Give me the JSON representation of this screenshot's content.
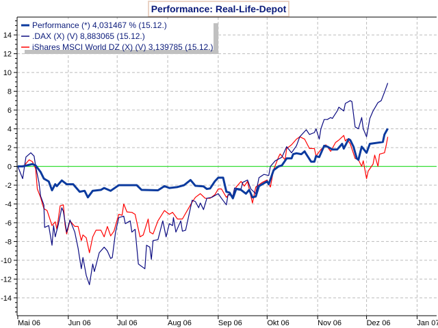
{
  "chart_data": {
    "type": "line",
    "title": "Performance: Real-Life-Depot",
    "xlabel": "",
    "ylabel": "",
    "x_unit": "days since 01.05.2006",
    "xlim": [
      -0.4,
      257
    ],
    "ylim": [
      -15.9,
      15.9
    ],
    "grid": true,
    "legend_placement": "top-left",
    "x_ticks": [
      {
        "label": "Mai 06",
        "day": 0
      },
      {
        "label": "Jun 06",
        "day": 31
      },
      {
        "label": "Jul 06",
        "day": 61
      },
      {
        "label": "Aug 06",
        "day": 92
      },
      {
        "label": "Sep 06",
        "day": 123
      },
      {
        "label": "Okt 06",
        "day": 153
      },
      {
        "label": "Nov 06",
        "day": 184
      },
      {
        "label": "Dez 06",
        "day": 214
      },
      {
        "label": "Jan 07",
        "day": 245
      }
    ],
    "y_ticks": [
      "-14",
      "-12",
      "-10",
      "-8",
      "-6",
      "-4",
      "-2",
      "0",
      "2",
      "4",
      "6",
      "8",
      "10",
      "12",
      "14"
    ],
    "colors": {
      "performance": "#0b3a9e",
      "dax": "#0a0a80",
      "ishares": "#ff0000",
      "zero_line": "#33dd33",
      "grid": "#bbbbbb",
      "title_border": "#ead3c5"
    },
    "series": [
      {
        "name": "Performance (*) 4,031467 % (15.12.)",
        "color": "#0b3a9e",
        "width": 3,
        "points": [
          [
            0,
            0
          ],
          [
            3,
            0
          ],
          [
            9,
            0.25
          ],
          [
            11,
            0.1
          ],
          [
            14,
            -0.6
          ],
          [
            16,
            -1.3
          ],
          [
            19,
            -1.6
          ],
          [
            21,
            -2.55
          ],
          [
            23,
            -1.9
          ],
          [
            24,
            -2.1
          ],
          [
            27,
            -1.5
          ],
          [
            30,
            -1.9
          ],
          [
            34,
            -1.9
          ],
          [
            38,
            -2.7
          ],
          [
            41,
            -2.6
          ],
          [
            43,
            -3.3
          ],
          [
            46,
            -2.6
          ],
          [
            51,
            -2.5
          ],
          [
            53,
            -2.3
          ],
          [
            57,
            -2.6
          ],
          [
            62,
            -2.0
          ],
          [
            65,
            -2.0
          ],
          [
            67,
            -2.0
          ],
          [
            73,
            -2.0
          ],
          [
            76,
            -2.5
          ],
          [
            86,
            -2.55
          ],
          [
            90,
            -2.1
          ],
          [
            93,
            -2.3
          ],
          [
            98,
            -2.2
          ],
          [
            102,
            -2.0
          ],
          [
            106,
            -1.45
          ],
          [
            109,
            -2.07
          ],
          [
            114,
            -2.13
          ],
          [
            116,
            -2.4
          ],
          [
            118,
            -2.35
          ],
          [
            121,
            -1.57
          ],
          [
            123,
            -1.2
          ],
          [
            126,
            -1.2
          ],
          [
            128,
            -2.7
          ],
          [
            130,
            -2.8
          ],
          [
            132,
            -3.4
          ],
          [
            134,
            -2.4
          ],
          [
            137,
            -2.5
          ],
          [
            140,
            -2.9
          ],
          [
            142,
            -2.5
          ],
          [
            144,
            -3.3
          ],
          [
            146,
            -3.2
          ],
          [
            148,
            -2.1
          ],
          [
            153,
            -1.6
          ],
          [
            154,
            -1.9
          ],
          [
            157,
            -0.4
          ],
          [
            160,
            0
          ],
          [
            162,
            0.1
          ],
          [
            165,
            0.85
          ],
          [
            168,
            0.85
          ],
          [
            169,
            1.3
          ],
          [
            171,
            1.4
          ],
          [
            174,
            1.3
          ],
          [
            176,
            1.6
          ],
          [
            177,
            1.3
          ],
          [
            180,
            0.5
          ],
          [
            182,
            0.5
          ],
          [
            183,
            1.1
          ],
          [
            185,
            1.0
          ],
          [
            188,
            2.2
          ],
          [
            190,
            2.1
          ],
          [
            193,
            1.8
          ],
          [
            196,
            1.8
          ],
          [
            199,
            2.4
          ],
          [
            200,
            1.9
          ],
          [
            203,
            2.9
          ],
          [
            204,
            2.8
          ],
          [
            206,
            2.1
          ],
          [
            208,
            0.85
          ],
          [
            209,
            0.7
          ],
          [
            211,
            2.1
          ],
          [
            214,
            1.45
          ],
          [
            216,
            2.4
          ],
          [
            224,
            2.6
          ],
          [
            225,
            3.4
          ],
          [
            227,
            4.03
          ]
        ]
      },
      {
        "name": ".DAX (X) (V) 8,883065 (15.12.)",
        "color": "#0a0a80",
        "width": 1.2,
        "points": [
          [
            0,
            0
          ],
          [
            3,
            -1.3
          ],
          [
            5,
            1.0
          ],
          [
            8,
            1.45
          ],
          [
            10,
            1.1
          ],
          [
            11,
            0
          ],
          [
            13,
            -1.7
          ],
          [
            14,
            -3.15
          ],
          [
            16,
            -4.1
          ],
          [
            16.5,
            -6.5
          ],
          [
            19,
            -6.3
          ],
          [
            21,
            -8.4
          ],
          [
            22,
            -6.3
          ],
          [
            23,
            -7.5
          ],
          [
            25,
            -6.1
          ],
          [
            27,
            -4.4
          ],
          [
            28,
            -4.8
          ],
          [
            30,
            -7.0
          ],
          [
            32,
            -5.7
          ],
          [
            35,
            -7.0
          ],
          [
            37,
            -8.7
          ],
          [
            39,
            -10.9
          ],
          [
            40,
            -9.7
          ],
          [
            42,
            -11.6
          ],
          [
            44,
            -12.6
          ],
          [
            46,
            -10.4
          ],
          [
            47,
            -11.2
          ],
          [
            50,
            -9.2
          ],
          [
            53,
            -8.6
          ],
          [
            55,
            -9.0
          ],
          [
            57,
            -9.8
          ],
          [
            58,
            -9.7
          ],
          [
            60,
            -7.0
          ],
          [
            62,
            -5.45
          ],
          [
            65,
            -5.3
          ],
          [
            66,
            -6.1
          ],
          [
            69,
            -5.8
          ],
          [
            70,
            -7.0
          ],
          [
            72,
            -6.7
          ],
          [
            74,
            -10.4
          ],
          [
            78,
            -10.9
          ],
          [
            79,
            -8.4
          ],
          [
            81,
            -8.6
          ],
          [
            82,
            -9.9
          ],
          [
            83,
            -7.9
          ],
          [
            86,
            -7.8
          ],
          [
            89,
            -5.8
          ],
          [
            91,
            -7.5
          ],
          [
            93,
            -6.1
          ],
          [
            95,
            -6.3
          ],
          [
            95.5,
            -5.45
          ],
          [
            97,
            -7.0
          ],
          [
            100,
            -5.8
          ],
          [
            101,
            -6.9
          ],
          [
            103,
            -6.8
          ],
          [
            107,
            -3.6
          ],
          [
            109,
            -3.75
          ],
          [
            111,
            -4.4
          ],
          [
            112,
            -3.9
          ],
          [
            114,
            -4.6
          ],
          [
            116,
            -3.4
          ],
          [
            119,
            -3.3
          ],
          [
            123,
            -2.9
          ],
          [
            125,
            -3.4
          ],
          [
            128,
            -4.1
          ],
          [
            129,
            -3.0
          ],
          [
            132,
            -3.15
          ],
          [
            133,
            -2.3
          ],
          [
            137,
            -2.4
          ],
          [
            138,
            -1.7
          ],
          [
            141,
            -1.45
          ],
          [
            143,
            -2.4
          ],
          [
            146,
            -2.9
          ],
          [
            148,
            -1.2
          ],
          [
            151,
            -0.85
          ],
          [
            154,
            -0.97
          ],
          [
            155,
            0
          ],
          [
            158,
            0.6
          ],
          [
            162,
            0.97
          ],
          [
            165,
            2.1
          ],
          [
            168,
            1.45
          ],
          [
            171,
            2.2
          ],
          [
            173,
            3.15
          ],
          [
            177,
            3.9
          ],
          [
            179,
            3.4
          ],
          [
            182,
            3.6
          ],
          [
            183,
            4.0
          ],
          [
            185,
            2.9
          ],
          [
            186,
            4.0
          ],
          [
            188,
            5.0
          ],
          [
            190,
            5.0
          ],
          [
            192,
            5.2
          ],
          [
            193,
            5.1
          ],
          [
            196,
            5.9
          ],
          [
            197,
            6.3
          ],
          [
            200,
            5.9
          ],
          [
            201,
            6.7
          ],
          [
            204,
            7.0
          ],
          [
            205,
            6.9
          ],
          [
            207,
            4.2
          ],
          [
            209,
            4.0
          ],
          [
            211,
            5.2
          ],
          [
            212,
            4.0
          ],
          [
            214,
            3.15
          ],
          [
            216,
            5.1
          ],
          [
            218,
            5.9
          ],
          [
            221,
            6.8
          ],
          [
            223,
            7.0
          ],
          [
            225,
            7.9
          ],
          [
            227,
            8.88
          ]
        ]
      },
      {
        "name": "iShares MSCI World DZ (X) (V) 3,139785 (15.12.)",
        "color": "#ff0000",
        "width": 1.2,
        "points": [
          [
            0,
            0
          ],
          [
            4,
            0.1
          ],
          [
            7,
            0.7
          ],
          [
            9,
            0.5
          ],
          [
            11,
            -0.25
          ],
          [
            12,
            -2.4
          ],
          [
            14,
            -3.3
          ],
          [
            16,
            -4.5
          ],
          [
            18,
            -4.7
          ],
          [
            21,
            -6.3
          ],
          [
            23,
            -5.9
          ],
          [
            24,
            -6.7
          ],
          [
            26,
            -4.2
          ],
          [
            28,
            -4.1
          ],
          [
            29,
            -6.2
          ],
          [
            30,
            -7.2
          ],
          [
            32,
            -5.8
          ],
          [
            35,
            -6.4
          ],
          [
            37,
            -6.4
          ],
          [
            39,
            -7.9
          ],
          [
            40,
            -7.3
          ],
          [
            42,
            -7.6
          ],
          [
            44,
            -9.2
          ],
          [
            46,
            -7.5
          ],
          [
            48,
            -6.8
          ],
          [
            51,
            -6.8
          ],
          [
            53,
            -7.5
          ],
          [
            55,
            -6.4
          ],
          [
            57,
            -7.4
          ],
          [
            59,
            -6.9
          ],
          [
            62,
            -5.1
          ],
          [
            64,
            -5.2
          ],
          [
            65,
            -4.0
          ],
          [
            67,
            -4.85
          ],
          [
            70,
            -4.9
          ],
          [
            72,
            -5.1
          ],
          [
            75,
            -7.5
          ],
          [
            77,
            -7.3
          ],
          [
            80,
            -5.6
          ],
          [
            81,
            -7.0
          ],
          [
            83,
            -7.2
          ],
          [
            86,
            -5.8
          ],
          [
            90,
            -4.7
          ],
          [
            93,
            -5.1
          ],
          [
            95,
            -4.9
          ],
          [
            98,
            -5.6
          ],
          [
            101,
            -5.6
          ],
          [
            104,
            -4.7
          ],
          [
            107,
            -3.8
          ],
          [
            109,
            -3.3
          ],
          [
            112,
            -2.9
          ],
          [
            115,
            -3.4
          ],
          [
            118,
            -3.4
          ],
          [
            121,
            -3.0
          ],
          [
            123,
            -2.4
          ],
          [
            125,
            -2.4
          ],
          [
            128,
            -3.3
          ],
          [
            130,
            -2.9
          ],
          [
            132,
            -3.15
          ],
          [
            134,
            -2.2
          ],
          [
            137,
            -1.6
          ],
          [
            139,
            -2.1
          ],
          [
            141,
            -1.6
          ],
          [
            143,
            -3.15
          ],
          [
            144,
            -3.9
          ],
          [
            146,
            -2.2
          ],
          [
            150,
            -1.7
          ],
          [
            153,
            -1.45
          ],
          [
            155,
            -2.2
          ],
          [
            157,
            -0.35
          ],
          [
            160,
            1.0
          ],
          [
            161,
            1.33
          ],
          [
            164,
            0.7
          ],
          [
            165,
            1.9
          ],
          [
            168,
            2.3
          ],
          [
            171,
            2.9
          ],
          [
            173,
            3.15
          ],
          [
            176,
            2.9
          ],
          [
            179,
            1.9
          ],
          [
            182,
            1.9
          ],
          [
            183,
            1.1
          ],
          [
            186,
            1.8
          ],
          [
            189,
            2.3
          ],
          [
            192,
            1.6
          ],
          [
            195,
            2.55
          ],
          [
            197,
            2.8
          ],
          [
            200,
            3.3
          ],
          [
            201,
            2.7
          ],
          [
            202,
            2.9
          ],
          [
            204,
            2.4
          ],
          [
            207,
            0.85
          ],
          [
            209,
            0.7
          ],
          [
            211,
            0
          ],
          [
            212,
            0.6
          ],
          [
            214,
            -1.3
          ],
          [
            215,
            -0.5
          ],
          [
            218,
            0.25
          ],
          [
            219,
            1.2
          ],
          [
            221,
            0
          ],
          [
            222,
            1.3
          ],
          [
            225,
            1.45
          ],
          [
            226,
            2.2
          ],
          [
            227,
            3.14
          ]
        ]
      }
    ]
  }
}
